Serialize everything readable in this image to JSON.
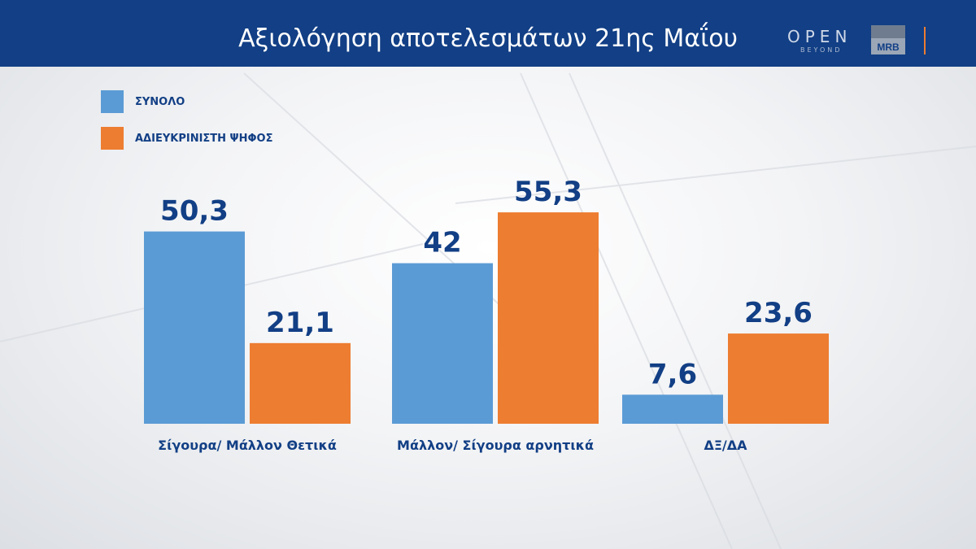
{
  "header": {
    "title": "Αξιολόγηση αποτελεσμάτων 21ης Μαΐου",
    "logo_open": "OPEN",
    "logo_beyond": "BEYOND",
    "logo_mrb": "MRB"
  },
  "colors": {
    "header_bg": "#123f85",
    "series_1": "#5b9bd5",
    "series_2": "#ed7d31",
    "text": "#123f85"
  },
  "chart_data": {
    "type": "bar",
    "title": "Αξιολόγηση αποτελεσμάτων 21ης Μαΐου",
    "categories": [
      "Σίγουρα/ Μάλλον Θετικά",
      "Μάλλον/ Σίγουρα αρνητικά",
      "ΔΞ/ΔΑ"
    ],
    "series": [
      {
        "name": "ΣΥΝΟΛΟ",
        "color": "#5b9bd5",
        "values": [
          50.3,
          42,
          7.6
        ],
        "labels": [
          "50,3",
          "42",
          "7,6"
        ]
      },
      {
        "name": "ΑΔΙΕΥΚΡΙΝΙΣΤΗ ΨΗΦΟΣ",
        "color": "#ed7d31",
        "values": [
          21.1,
          55.3,
          23.6
        ],
        "labels": [
          "21,1",
          "55,3",
          "23,6"
        ]
      }
    ],
    "ylim": [
      0,
      60
    ],
    "grid": false,
    "legend": "top-left"
  }
}
